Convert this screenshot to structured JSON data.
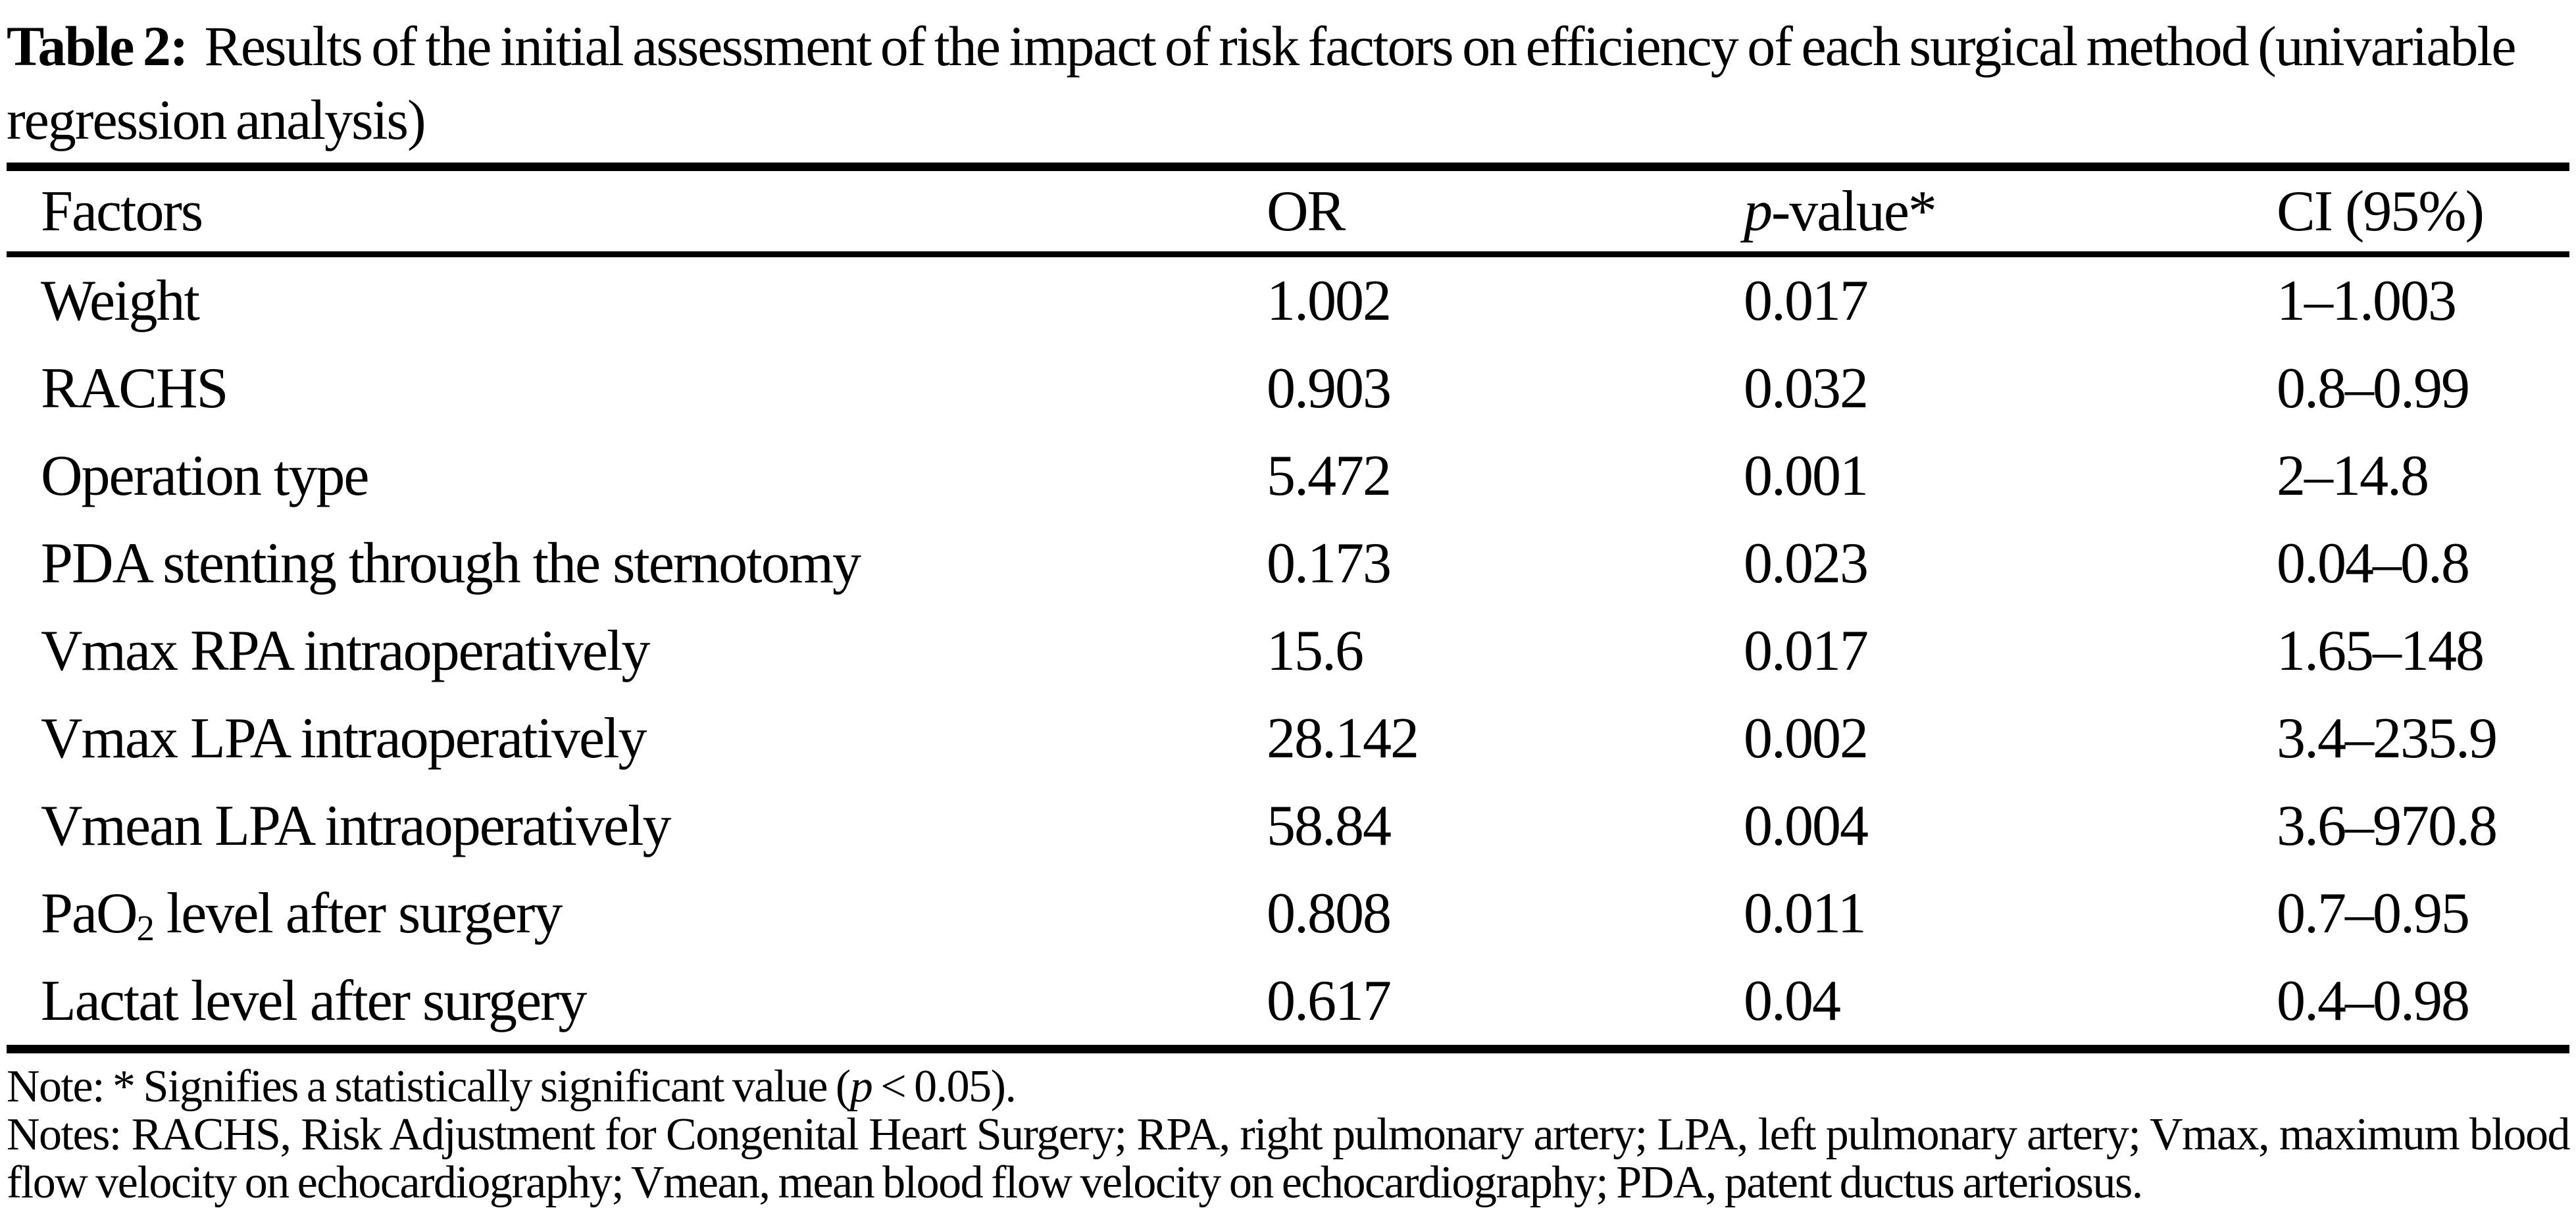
{
  "page": {
    "background": "#ffffff",
    "text_color": "#000000"
  },
  "caption": {
    "label": "Table 2:",
    "text": "Results of the initial assessment of the impact of risk factors on efficiency of each surgical method (univariable regression analysis)"
  },
  "table": {
    "header": {
      "factors": "Factors",
      "or": "OR",
      "p_value": [
        {
          "text": "p",
          "style": "italic"
        },
        {
          "text": "-value*"
        }
      ],
      "ci": "CI (95%)"
    },
    "rows": [
      {
        "factor": "Weight",
        "or": "1.002",
        "p_value": "0.017",
        "ci": "1–1.003"
      },
      {
        "factor": "RACHS",
        "or": "0.903",
        "p_value": "0.032",
        "ci": "0.8–0.99"
      },
      {
        "factor": "Operation type",
        "or": "5.472",
        "p_value": "0.001",
        "ci": "2–14.8"
      },
      {
        "factor": "PDA stenting through the sternotomy",
        "or": "0.173",
        "p_value": "0.023",
        "ci": "0.04–0.8"
      },
      {
        "factor": "Vmax RPA intraoperatively",
        "or": "15.6",
        "p_value": "0.017",
        "ci": "1.65–148"
      },
      {
        "factor": "Vmax LPA intraoperatively",
        "or": "28.142",
        "p_value": "0.002",
        "ci": "3.4–235.9"
      },
      {
        "factor": "Vmean LPA intraoperatively",
        "or": "58.84",
        "p_value": "0.004",
        "ci": "3.6–970.8"
      },
      {
        "factor": [
          {
            "text": "PaO"
          },
          {
            "text": "2",
            "style": "sub"
          },
          {
            "text": " level after surgery"
          }
        ],
        "or": "0.808",
        "p_value": "0.011",
        "ci": "0.7–0.95"
      },
      {
        "factor": "Lactat level after surgery",
        "or": "0.617",
        "p_value": "0.04",
        "ci": "0.4–0.98"
      }
    ]
  },
  "footnotes": {
    "significance": [
      {
        "text": "Note: * Signifies a statistically significant value ("
      },
      {
        "text": "p",
        "style": "italic"
      },
      {
        "text": " < 0.05)."
      }
    ],
    "abbreviations": "Notes: RACHS, Risk Adjustment for Congenital Heart Surgery; RPA, right pulmonary artery; LPA, left pulmonary artery; Vmax, maximum blood flow velocity on echocardiography; Vmean, mean blood flow velocity on echocardiography; PDA, patent ductus arteriosus."
  }
}
